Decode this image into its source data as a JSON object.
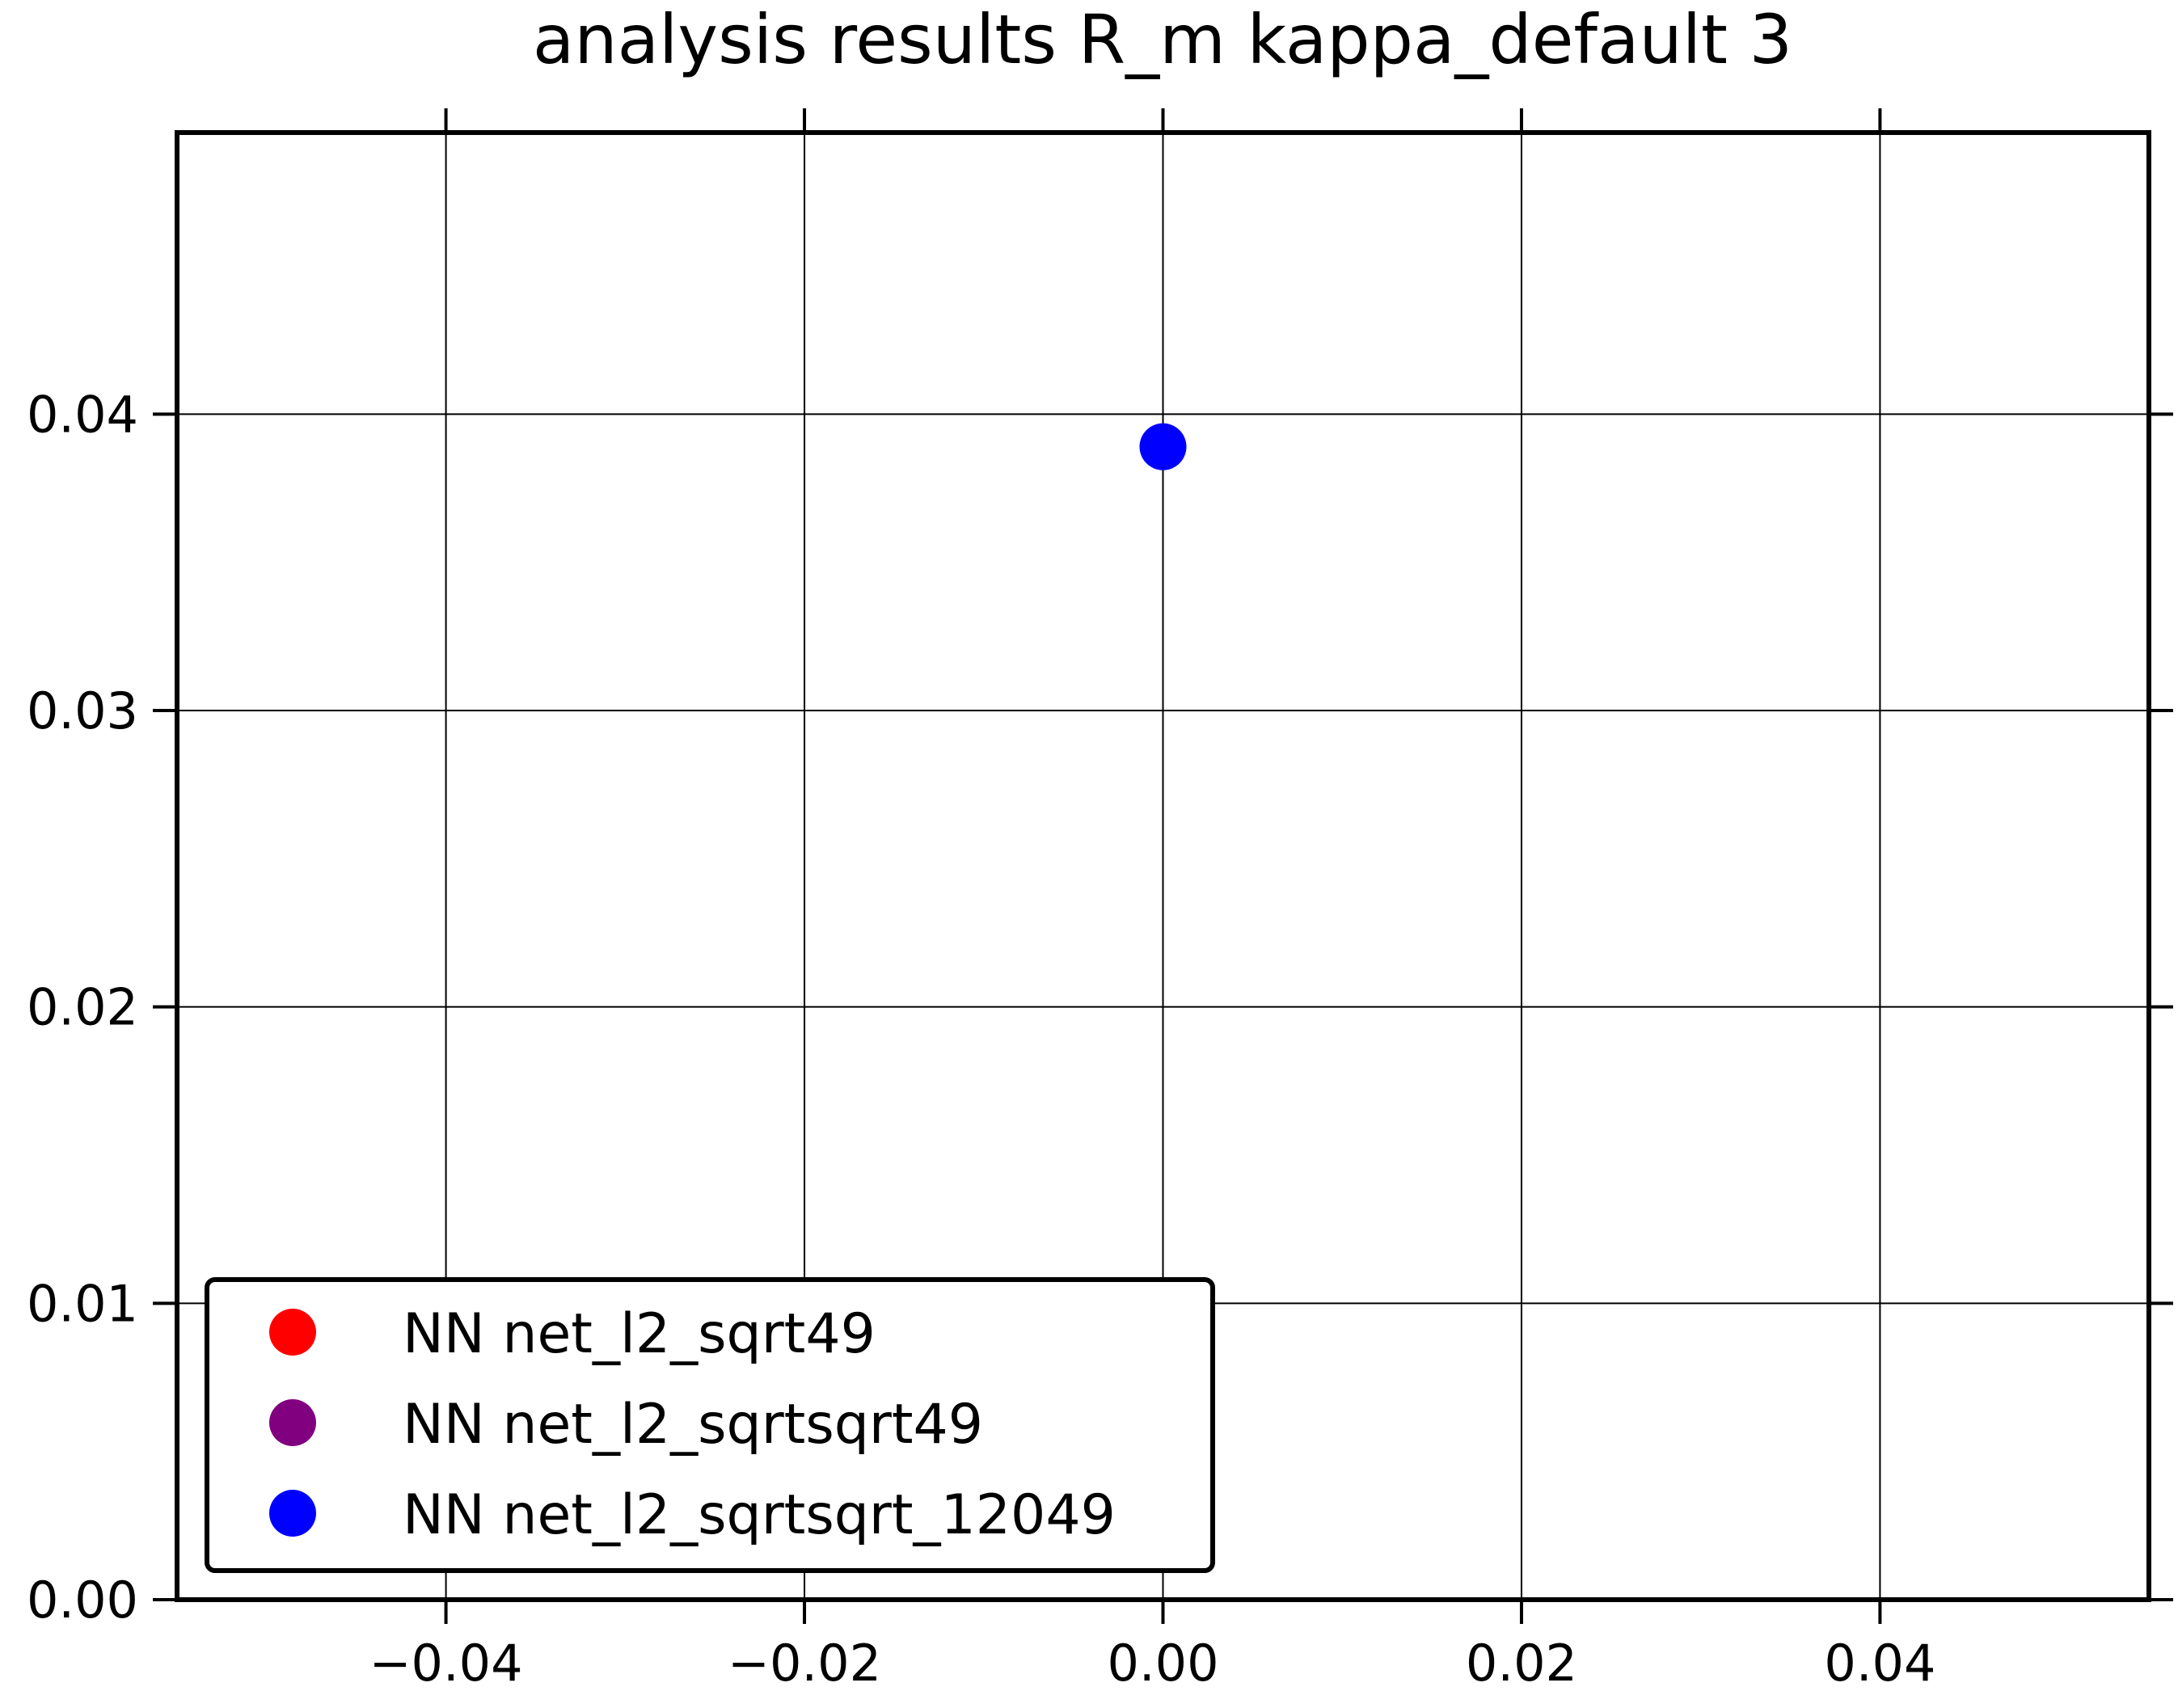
{
  "chart_data": {
    "type": "scatter",
    "title": "analysis results R_m  kappa_default 3",
    "xlabel": "",
    "ylabel": "",
    "xlim": [
      -0.055,
      0.055
    ],
    "ylim": [
      0.0,
      0.0495
    ],
    "x_ticks": [
      -0.04,
      -0.02,
      0.0,
      0.02,
      0.04
    ],
    "x_tick_labels": [
      "−0.04",
      "−0.02",
      "0.00",
      "0.02",
      "0.04"
    ],
    "y_ticks": [
      0.0,
      0.01,
      0.02,
      0.03,
      0.04
    ],
    "y_tick_labels": [
      "0.00",
      "0.01",
      "0.02",
      "0.03",
      "0.04"
    ],
    "grid": true,
    "legend_position": "lower-left",
    "series": [
      {
        "name": "NN net_l2_sqrt49",
        "color": "#ff0000",
        "points": []
      },
      {
        "name": "NN net_l2_sqrtsqrt49",
        "color": "#800080",
        "points": []
      },
      {
        "name": "NN net_l2_sqrtsqrt_12049",
        "color": "#0000ff",
        "points": [
          {
            "x": 0.0,
            "y": 0.0389
          }
        ]
      }
    ]
  }
}
